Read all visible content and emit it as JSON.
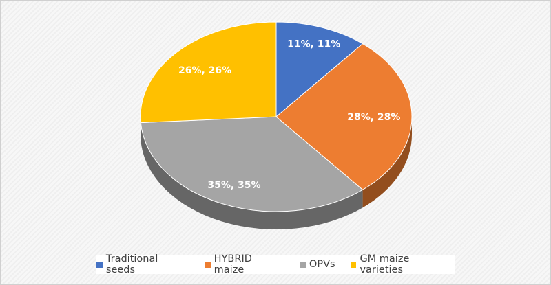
{
  "chart_data": {
    "type": "pie",
    "style": "3d",
    "categories": [
      "Traditional seeds",
      "HYBRID maize",
      "OPVs",
      "GM maize varieties"
    ],
    "values": [
      11,
      28,
      35,
      26
    ],
    "data_labels": [
      "11%, 11%",
      "28%, 28%",
      "35%, 35%",
      "26%, 26%"
    ],
    "colors": [
      "#4472C4",
      "#ED7D31",
      "#A5A5A5",
      "#FFC000"
    ],
    "legend_position": "bottom"
  }
}
